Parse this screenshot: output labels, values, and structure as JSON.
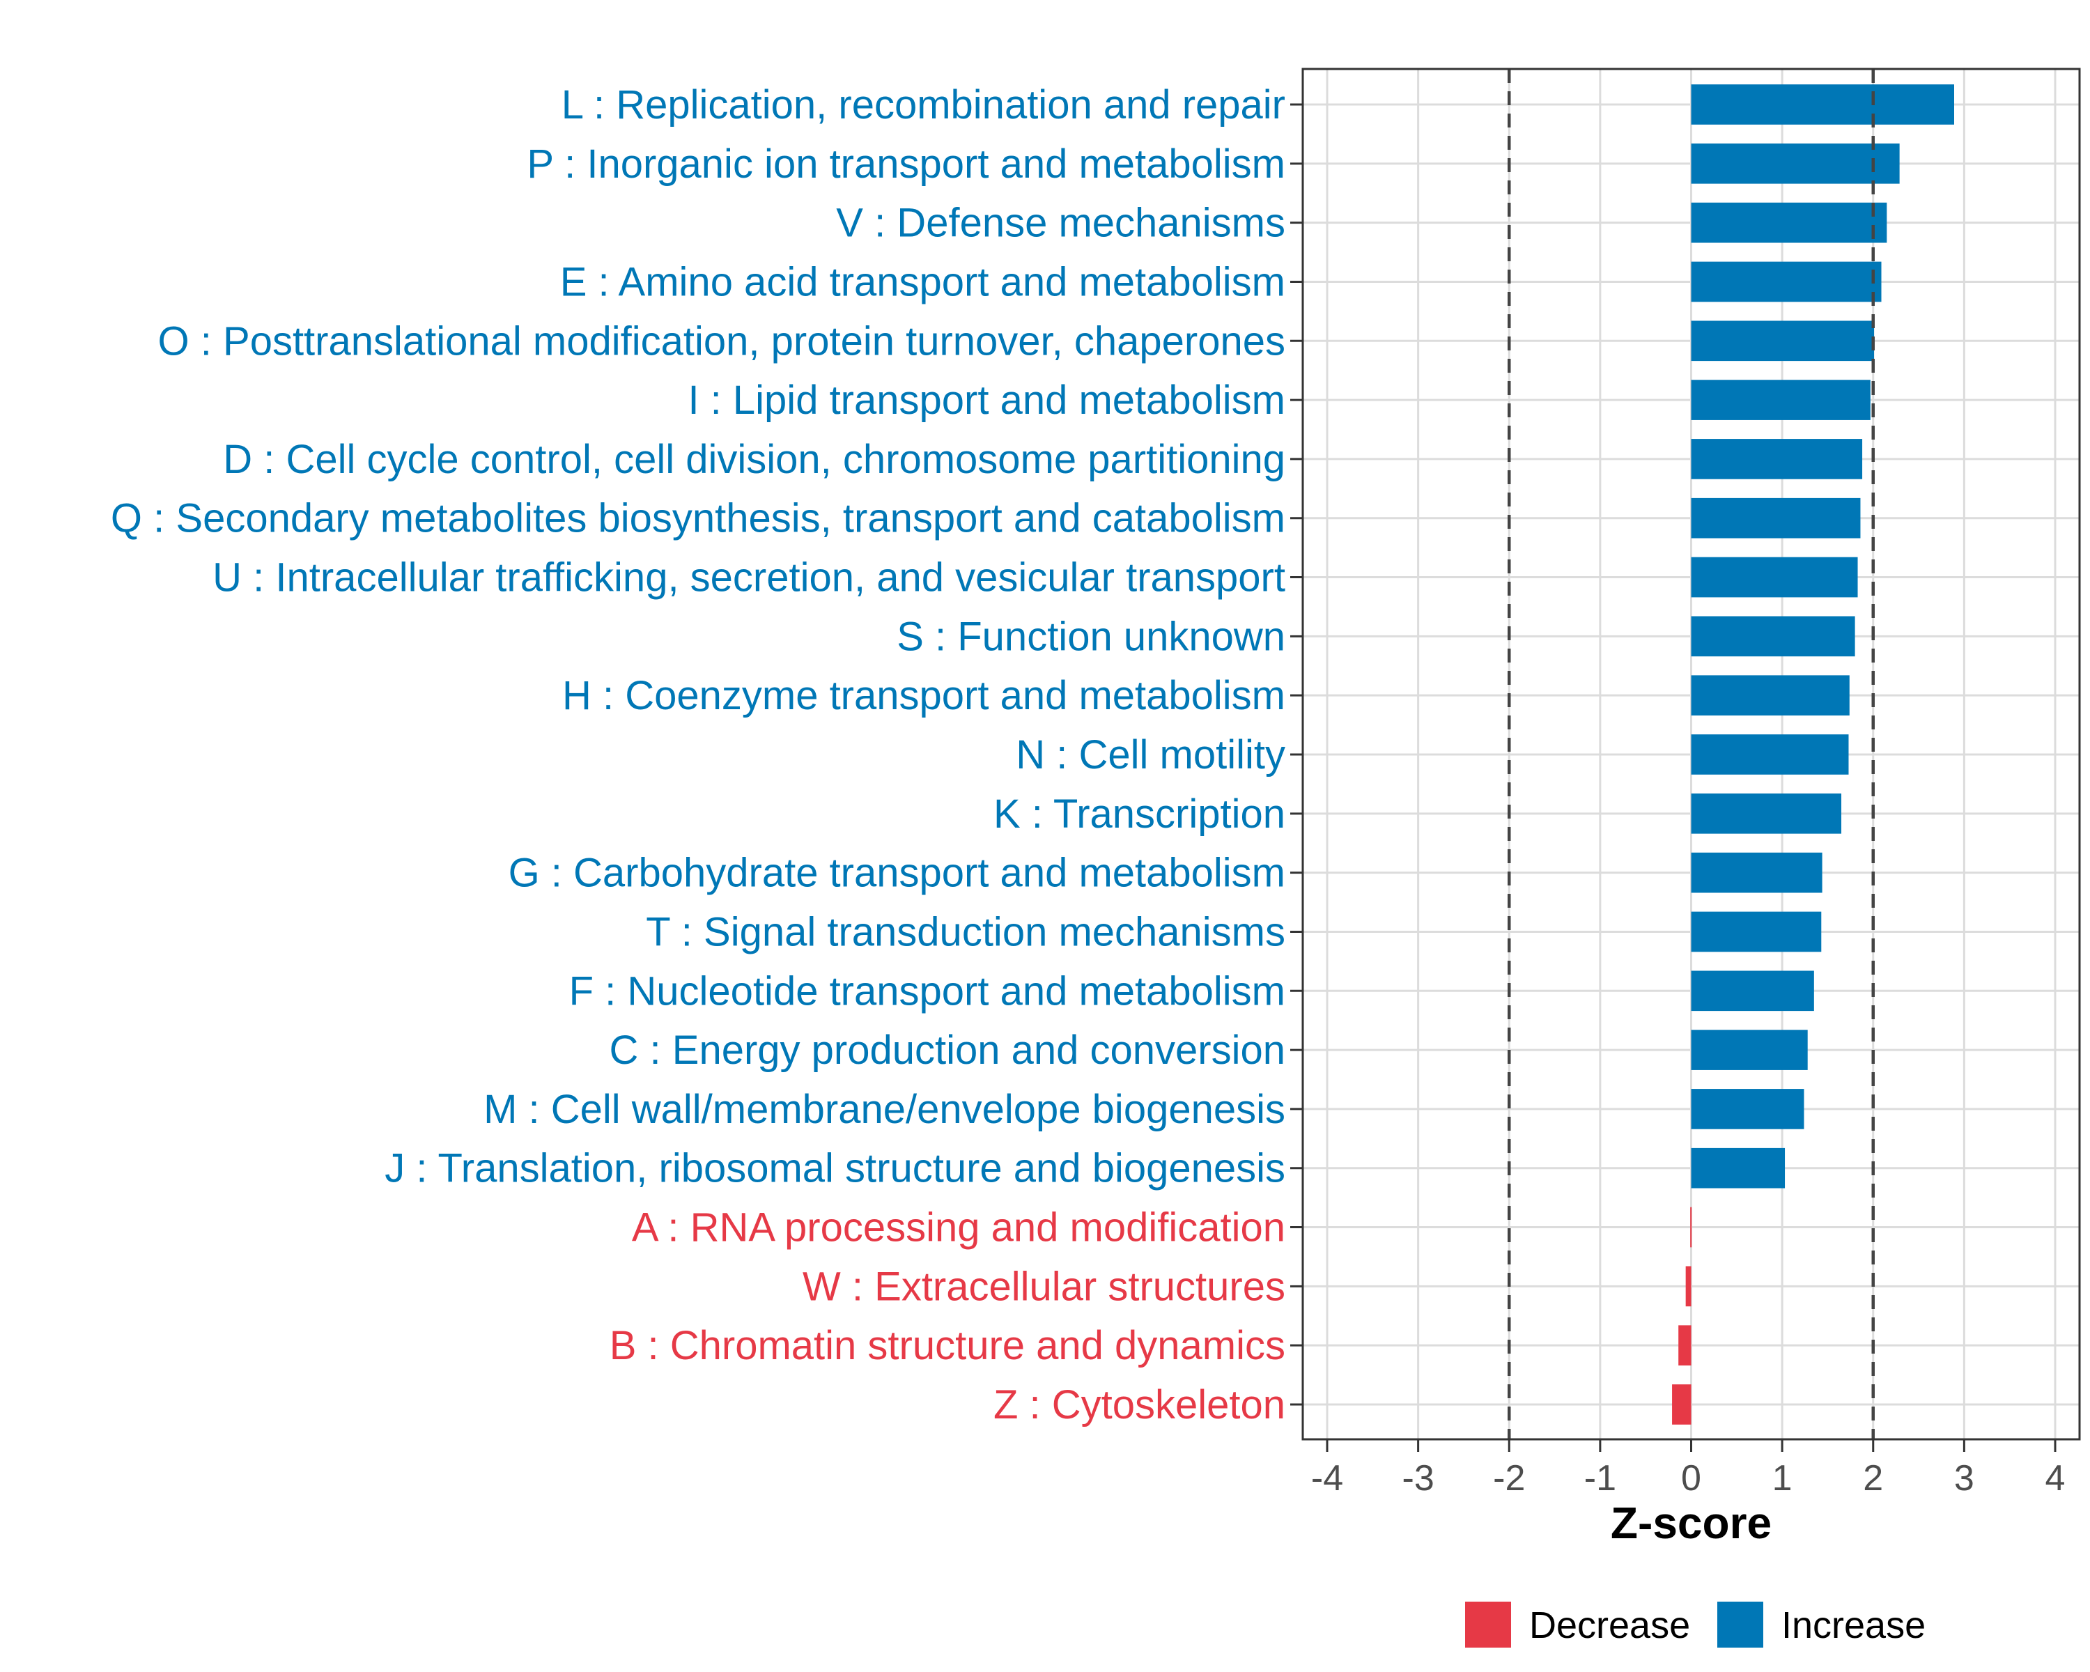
{
  "chart_data": {
    "type": "bar",
    "orientation": "horizontal",
    "title": "",
    "xlabel": "Z-score",
    "ylabel": "",
    "xlim": [
      -4,
      4
    ],
    "xticks": [
      -4,
      -3,
      -2,
      -1,
      0,
      1,
      2,
      3,
      4
    ],
    "xtick_labels": [
      "-4",
      "-3",
      "-2",
      "-1",
      "0",
      "1",
      "2",
      "3",
      "4"
    ],
    "reference_lines": [
      -2,
      2
    ],
    "grid": true,
    "legend_position": "bottom",
    "colors": {
      "Increase": "#0077b6",
      "Decrease": "#e63946"
    },
    "legend": [
      {
        "label": "Decrease",
        "color": "#e63946"
      },
      {
        "label": "Increase",
        "color": "#0077b6"
      }
    ],
    "categories": [
      "L : Replication, recombination and repair",
      "P : Inorganic ion transport and metabolism",
      "V : Defense mechanisms",
      "E : Amino acid transport and metabolism",
      "O : Posttranslational modification, protein turnover, chaperones",
      "I : Lipid transport and metabolism",
      "D : Cell cycle control, cell division, chromosome partitioning",
      "Q : Secondary metabolites biosynthesis, transport and catabolism",
      "U : Intracellular trafficking, secretion, and vesicular transport",
      "S : Function unknown",
      "H : Coenzyme transport and metabolism",
      "N : Cell motility",
      "K : Transcription",
      "G : Carbohydrate transport and metabolism",
      "T : Signal transduction mechanisms",
      "F : Nucleotide transport and metabolism",
      "C : Energy production and conversion",
      "M : Cell wall/membrane/envelope biogenesis",
      "J : Translation, ribosomal structure and biogenesis",
      "A : RNA processing and modification",
      "W : Extracellular structures",
      "B : Chromatin structure and dynamics",
      "Z : Cytoskeleton"
    ],
    "values": [
      2.89,
      2.29,
      2.15,
      2.09,
      2.01,
      1.97,
      1.88,
      1.86,
      1.83,
      1.8,
      1.74,
      1.73,
      1.65,
      1.44,
      1.43,
      1.35,
      1.28,
      1.24,
      1.03,
      -0.01,
      -0.06,
      -0.14,
      -0.21
    ],
    "groups": [
      "Increase",
      "Increase",
      "Increase",
      "Increase",
      "Increase",
      "Increase",
      "Increase",
      "Increase",
      "Increase",
      "Increase",
      "Increase",
      "Increase",
      "Increase",
      "Increase",
      "Increase",
      "Increase",
      "Increase",
      "Increase",
      "Increase",
      "Decrease",
      "Decrease",
      "Decrease",
      "Decrease"
    ]
  }
}
